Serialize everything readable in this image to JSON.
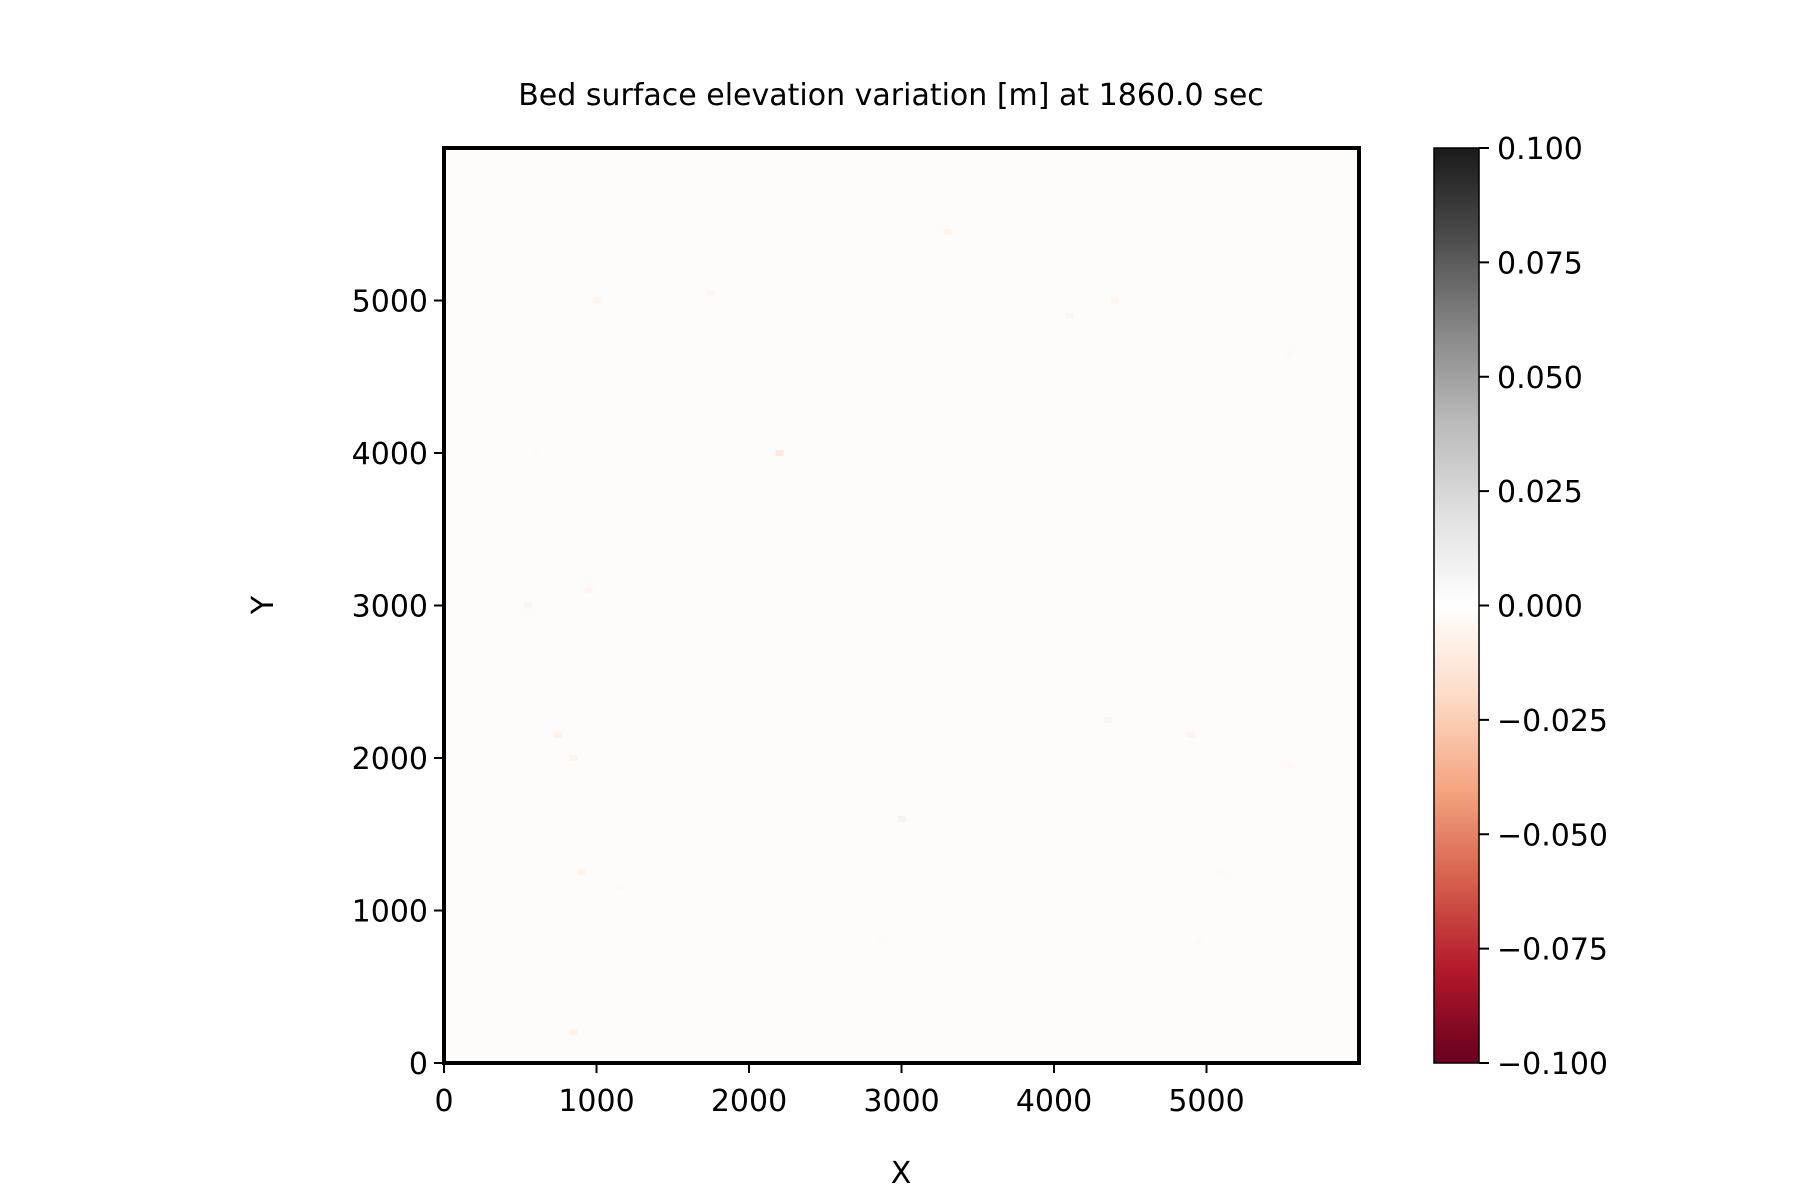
{
  "chart_data": {
    "type": "heatmap",
    "title": "Bed surface elevation variation [m] at 1860.0 sec",
    "xlabel": "X",
    "ylabel": "Y",
    "xlim": [
      0,
      6000
    ],
    "ylim": [
      0,
      6000
    ],
    "x_ticks": [
      0,
      1000,
      2000,
      3000,
      4000,
      5000
    ],
    "y_ticks": [
      0,
      1000,
      2000,
      3000,
      4000,
      5000
    ],
    "x_tick_labels": [
      "0",
      "1000",
      "2000",
      "3000",
      "4000",
      "5000"
    ],
    "y_tick_labels": [
      "0",
      "1000",
      "2000",
      "3000",
      "4000",
      "5000"
    ],
    "colorbar": {
      "colormap": "RdGy",
      "vmin": -0.1,
      "vmax": 0.1,
      "ticks": [
        0.1,
        0.075,
        0.05,
        0.025,
        0.0,
        -0.025,
        -0.05,
        -0.075,
        -0.1
      ],
      "tick_labels": [
        "0.100",
        "0.075",
        "0.050",
        "0.025",
        "0.000",
        "−0.025",
        "−0.050",
        "−0.075",
        "−0.100"
      ],
      "colors": [
        "#67001f",
        "#b2182b",
        "#d6604d",
        "#f4a582",
        "#fddbc7",
        "#ffffff",
        "#e0e0e0",
        "#bababa",
        "#878787",
        "#4d4d4d",
        "#1a1a1a"
      ]
    },
    "field_background_value": 0.0,
    "grid": false,
    "values": [
      {
        "x": 1000,
        "y": 5000,
        "v": -0.006
      },
      {
        "x": 1750,
        "y": 5050,
        "v": -0.005
      },
      {
        "x": 4100,
        "y": 4900,
        "v": 0.006
      },
      {
        "x": 4400,
        "y": 5000,
        "v": -0.005
      },
      {
        "x": 5550,
        "y": 4650,
        "v": -0.004
      },
      {
        "x": 2200,
        "y": 4000,
        "v": -0.012
      },
      {
        "x": 600,
        "y": 4000,
        "v": -0.004
      },
      {
        "x": 550,
        "y": 3000,
        "v": -0.006
      },
      {
        "x": 950,
        "y": 3100,
        "v": -0.005
      },
      {
        "x": 750,
        "y": 2150,
        "v": -0.008
      },
      {
        "x": 850,
        "y": 2000,
        "v": -0.006
      },
      {
        "x": 4350,
        "y": 2250,
        "v": -0.006
      },
      {
        "x": 4900,
        "y": 2150,
        "v": -0.006
      },
      {
        "x": 900,
        "y": 1250,
        "v": -0.007
      },
      {
        "x": 1150,
        "y": 1150,
        "v": -0.004
      },
      {
        "x": 3000,
        "y": 1600,
        "v": 0.008
      },
      {
        "x": 5100,
        "y": 1250,
        "v": -0.004
      },
      {
        "x": 4950,
        "y": 800,
        "v": -0.004
      },
      {
        "x": 850,
        "y": 200,
        "v": -0.007
      },
      {
        "x": 2850,
        "y": 800,
        "v": -0.003
      },
      {
        "x": 3300,
        "y": 5450,
        "v": -0.006
      },
      {
        "x": 5550,
        "y": 1950,
        "v": -0.004
      }
    ]
  }
}
